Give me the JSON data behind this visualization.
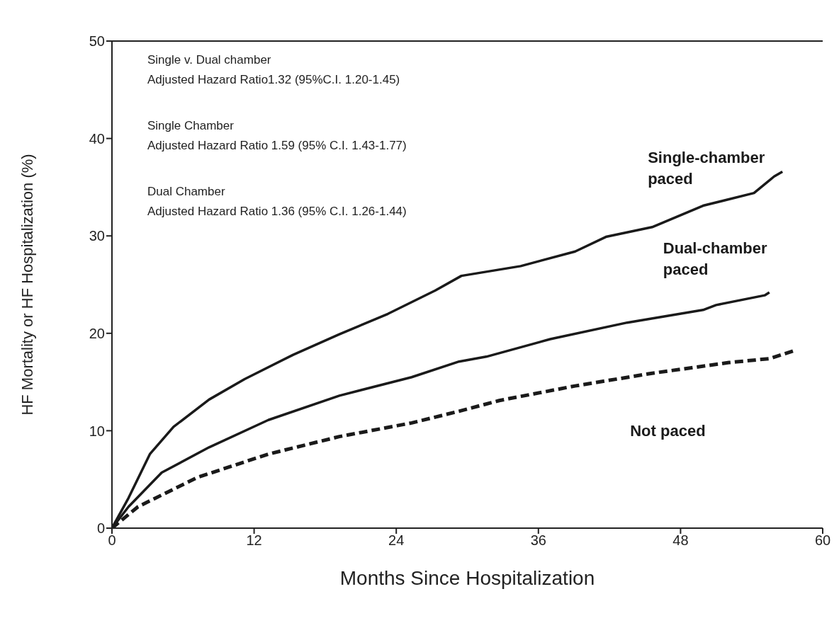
{
  "chart_data": {
    "type": "line",
    "xlabel": "Months Since Hospitalization",
    "ylabel": "HF Mortality or HF Hospitalization (%)",
    "xlim": [
      0,
      60
    ],
    "xticks": [
      0,
      12,
      24,
      36,
      48,
      60
    ],
    "ylim": [
      0,
      50
    ],
    "yticks": [
      0,
      10,
      20,
      30,
      40,
      50
    ],
    "marker": "none",
    "annotations": [
      "Single v. Dual chamber",
      "Adjusted Hazard Ratio1.32 (95%C.I. 1.20-1.45)",
      "Single Chamber",
      "Adjusted Hazard Ratio 1.59 (95% C.I. 1.43-1.77)",
      "Dual Chamber",
      "Adjusted Hazard Ratio 1.36 (95% C.I. 1.26-1.44)"
    ],
    "series": [
      {
        "name": "Single-chamber paced",
        "color": "#1a1a1a",
        "line_style": "solid",
        "x": [
          0,
          1.4,
          3.2,
          5.2,
          8.2,
          11.2,
          15.3,
          19.2,
          23.3,
          27.3,
          29.5,
          34.5,
          39.1,
          41.7,
          45.6,
          49.9,
          54.2,
          55.9,
          56.6
        ],
        "values": [
          0,
          3.1,
          7.6,
          10.4,
          13.2,
          15.3,
          17.8,
          19.9,
          22.0,
          24.4,
          25.9,
          26.9,
          28.4,
          29.9,
          30.9,
          33.1,
          34.4,
          36.1,
          36.6
        ]
      },
      {
        "name": "Dual-chamber paced",
        "color": "#1a1a1a",
        "line_style": "solid",
        "x": [
          0,
          1.4,
          4.2,
          8.2,
          13.2,
          19.2,
          25.3,
          29.3,
          31.6,
          37.0,
          43.5,
          49.9,
          51.0,
          55.1,
          55.5
        ],
        "values": [
          0,
          2.2,
          5.7,
          8.3,
          11.1,
          13.6,
          15.5,
          17.1,
          17.6,
          19.4,
          21.1,
          22.4,
          22.9,
          23.9,
          24.2
        ]
      },
      {
        "name": "Not paced",
        "color": "#1a1a1a",
        "line_style": "dashed",
        "x": [
          0,
          2.2,
          7.2,
          13.2,
          19.2,
          25.3,
          29.3,
          32.7,
          39.1,
          45.6,
          52.1,
          55.5,
          57.8
        ],
        "values": [
          0,
          2.2,
          5.2,
          7.6,
          9.4,
          10.8,
          12.0,
          13.1,
          14.6,
          15.9,
          17.0,
          17.4,
          18.3
        ]
      }
    ]
  }
}
